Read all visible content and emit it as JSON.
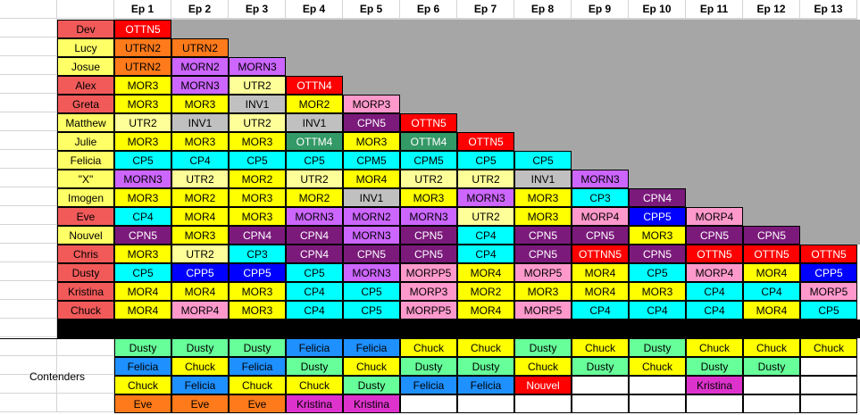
{
  "episodes": [
    "Ep 1",
    "Ep 2",
    "Ep 3",
    "Ep 4",
    "Ep 5",
    "Ep 6",
    "Ep 7",
    "Ep 8",
    "Ep 9",
    "Ep 10",
    "Ep 11",
    "Ep 12",
    "Ep 13"
  ],
  "colors": {
    "name_red": "#f25a5a",
    "name_yellow": "#ffff66",
    "elim_gray": "#a6a6a6",
    "OTTN5": "#ff0000",
    "OTTNN5": "#ff0000",
    "UTRN2": "#ff7a1a",
    "MORN2": "#cc66ff",
    "MORN3": "#cc66ff",
    "MORNN3": "#cc66ff",
    "MOR3": "#ffff00",
    "MOR4": "#ffff00",
    "MOR2": "#ffff00",
    "MORP3": "#ff99cc",
    "MORP4": "#ff99cc",
    "MORP5": "#ff99cc",
    "MORPP5": "#ff99cc",
    "UTR2": "#ffff99",
    "INV1": "#c0c0c0",
    "OTTN4": "#ff0000",
    "CPN5": "#7b1a7b",
    "CPN4": "#7b1a7b",
    "OTTM4": "#339966",
    "CP5": "#00ffff",
    "CP4": "#00ffff",
    "CP3": "#00ffff",
    "CPM5": "#00ffff",
    "CPP5": "#0000ff",
    "win_green": "#66ff99",
    "win_yellow": "#ffff00",
    "win_blue": "#1e90ff",
    "win_orange": "#ff7a1a",
    "win_magenta": "#dd33cc",
    "win_red": "#ff0000",
    "win_pink": "#dd33cc",
    "empty": "#ffffff"
  },
  "contestants": [
    {
      "name": "Dev",
      "name_color": "red",
      "cells": [
        "OTTN5"
      ]
    },
    {
      "name": "Lucy",
      "name_color": "yellow",
      "cells": [
        "UTRN2",
        "UTRN2"
      ]
    },
    {
      "name": "Josue",
      "name_color": "yellow",
      "cells": [
        "UTRN2",
        "MORN2",
        "MORN3"
      ]
    },
    {
      "name": "Alex",
      "name_color": "red",
      "cells": [
        "MOR3",
        "MORN3",
        "UTR2",
        "OTTN4"
      ]
    },
    {
      "name": "Greta",
      "name_color": "red",
      "cells": [
        "MOR3",
        "MOR3",
        "INV1",
        "MOR2",
        "MORP3"
      ]
    },
    {
      "name": "Matthew",
      "name_color": "yellow",
      "cells": [
        "UTR2",
        "INV1",
        "UTR2",
        "INV1",
        "CPN5",
        "OTTN5"
      ]
    },
    {
      "name": "Julie",
      "name_color": "yellow",
      "cells": [
        "MOR3",
        "MOR3",
        "MOR3",
        "OTTM4",
        "MOR3",
        "OTTM4",
        "OTTN5"
      ]
    },
    {
      "name": "Felicia",
      "name_color": "yellow",
      "cells": [
        "CP5",
        "CP4",
        "CP5",
        "CP5",
        "CPM5",
        "CPM5",
        "CP5",
        "CP5"
      ]
    },
    {
      "name": "\"X\"",
      "name_color": "yellow",
      "cells": [
        "MORN3",
        "UTR2",
        "MOR2",
        "UTR2",
        "MOR4",
        "UTR2",
        "UTR2",
        "INV1",
        "MORN3"
      ]
    },
    {
      "name": "Imogen",
      "name_color": "yellow",
      "cells": [
        "MOR3",
        "MOR2",
        "MOR3",
        "MOR2",
        "INV1",
        "MOR3",
        "MORN3",
        "MOR3",
        "CP3",
        "CPN4"
      ]
    },
    {
      "name": "Eve",
      "name_color": "red",
      "cells": [
        "CP4",
        "MOR4",
        "MOR3",
        "MORN3",
        "MORN2",
        "MORN3",
        "UTR2",
        "MOR3",
        "MORP4",
        "CPP5",
        "MORP4"
      ]
    },
    {
      "name": "Nouvel",
      "name_color": "yellow",
      "cells": [
        "CPN5",
        "MOR3",
        "CPN4",
        "CPN4",
        "MORN3",
        "CPN5",
        "CP4",
        "CPN5",
        "CPN5",
        "MOR3",
        "CPN5",
        "CPN5"
      ]
    },
    {
      "name": "Chris",
      "name_color": "red",
      "cells": [
        "MOR3",
        "UTR2",
        "CP3",
        "CPN4",
        "CPN5",
        "CPN5",
        "CP4",
        "CPN5",
        "OTTNN5",
        "CPN5",
        "OTTN5",
        "OTTN5",
        "OTTN5"
      ]
    },
    {
      "name": "Dusty",
      "name_color": "red",
      "cells": [
        "CP5",
        "CPP5",
        "CPP5",
        "CP5",
        "MORN3",
        "MORPP5",
        "MOR4",
        "MORP5",
        "MOR4",
        "CP5",
        "MORP4",
        "MOR4",
        "CPP5"
      ]
    },
    {
      "name": "Kristina",
      "name_color": "red",
      "cells": [
        "MOR4",
        "MOR4",
        "MOR3",
        "CP4",
        "CP5",
        "MORP3",
        "MOR2",
        "MOR3",
        "MOR4",
        "MOR3",
        "CP4",
        "CP4",
        "MORP5"
      ]
    },
    {
      "name": "Chuck",
      "name_color": "red",
      "cells": [
        "MOR4",
        "MORP4",
        "MOR3",
        "CP4",
        "CP5",
        "MORPP5",
        "MOR4",
        "MORP5",
        "CP4",
        "CP4",
        "CP4",
        "MOR4",
        "CP5"
      ]
    }
  ],
  "contenders_label": "Contenders",
  "contenders": [
    [
      [
        "Dusty",
        "win_green"
      ],
      [
        "Felicia",
        "win_blue"
      ],
      [
        "Chuck",
        "win_yellow"
      ],
      [
        "Eve",
        "win_orange"
      ]
    ],
    [
      [
        "Dusty",
        "win_green"
      ],
      [
        "Chuck",
        "win_yellow"
      ],
      [
        "Felicia",
        "win_blue"
      ],
      [
        "Eve",
        "win_orange"
      ]
    ],
    [
      [
        "Dusty",
        "win_green"
      ],
      [
        "Felicia",
        "win_blue"
      ],
      [
        "Chuck",
        "win_yellow"
      ],
      [
        "Eve",
        "win_orange"
      ]
    ],
    [
      [
        "Felicia",
        "win_blue"
      ],
      [
        "Dusty",
        "win_green"
      ],
      [
        "Chuck",
        "win_yellow"
      ],
      [
        "Kristina",
        "win_magenta"
      ]
    ],
    [
      [
        "Felicia",
        "win_blue"
      ],
      [
        "Chuck",
        "win_yellow"
      ],
      [
        "Dusty",
        "win_green"
      ],
      [
        "Kristina",
        "win_magenta"
      ]
    ],
    [
      [
        "Chuck",
        "win_yellow"
      ],
      [
        "Dusty",
        "win_green"
      ],
      [
        "Felicia",
        "win_blue"
      ],
      [
        "",
        ""
      ]
    ],
    [
      [
        "Chuck",
        "win_yellow"
      ],
      [
        "Dusty",
        "win_green"
      ],
      [
        "Felicia",
        "win_blue"
      ],
      [
        "",
        ""
      ]
    ],
    [
      [
        "Dusty",
        "win_green"
      ],
      [
        "Chuck",
        "win_yellow"
      ],
      [
        "Nouvel",
        "win_red"
      ],
      [
        "",
        ""
      ]
    ],
    [
      [
        "Chuck",
        "win_yellow"
      ],
      [
        "Dusty",
        "win_green"
      ],
      [
        "",
        ""
      ],
      [
        "",
        ""
      ]
    ],
    [
      [
        "Dusty",
        "win_green"
      ],
      [
        "Chuck",
        "win_yellow"
      ],
      [
        "",
        ""
      ],
      [
        "",
        ""
      ]
    ],
    [
      [
        "Chuck",
        "win_yellow"
      ],
      [
        "Dusty",
        "win_green"
      ],
      [
        "Kristina",
        "win_pink"
      ],
      [
        "",
        ""
      ]
    ],
    [
      [
        "Chuck",
        "win_yellow"
      ],
      [
        "Dusty",
        "win_green"
      ],
      [
        "",
        ""
      ],
      [
        "",
        ""
      ]
    ],
    [
      [
        "Chuck",
        "win_yellow"
      ],
      [
        "",
        ""
      ],
      [
        "",
        ""
      ],
      [
        "",
        ""
      ]
    ]
  ]
}
